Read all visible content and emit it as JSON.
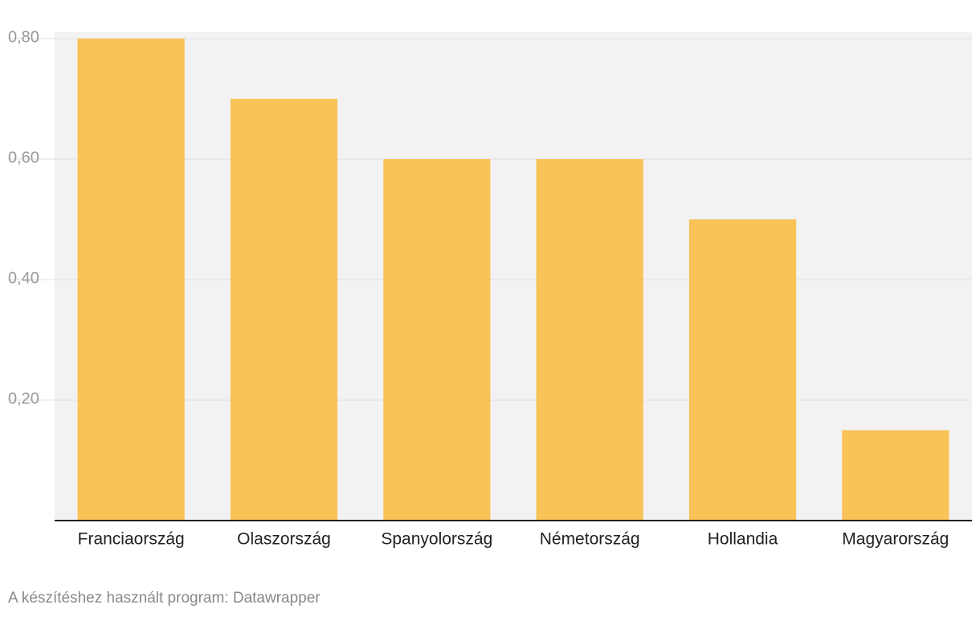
{
  "chart_data": {
    "type": "bar",
    "categories": [
      "Franciaország",
      "Olaszország",
      "Spanyolország",
      "Németország",
      "Hollandia",
      "Magyarország"
    ],
    "values": [
      0.8,
      0.7,
      0.6,
      0.6,
      0.5,
      0.15
    ],
    "color": "#f9c358",
    "ylim": [
      0,
      0.8
    ],
    "yticks": [
      {
        "value": 0.2,
        "label": "0,20"
      },
      {
        "value": 0.4,
        "label": "0,40"
      },
      {
        "value": 0.6,
        "label": "0,60"
      },
      {
        "value": 0.8,
        "label": "0,80"
      }
    ],
    "grid": true,
    "credit": "A készítéshez használt program: Datawrapper"
  }
}
